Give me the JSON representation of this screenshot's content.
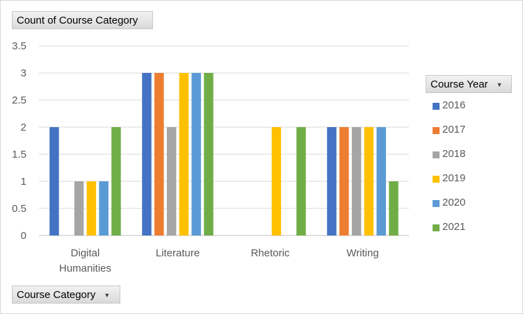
{
  "fields": {
    "value_field": "Count of Course Category",
    "category_field": "Course Category",
    "series_field": "Course Year"
  },
  "icons": {
    "dropdown": "dropdown-arrow-icon"
  },
  "chart_data": {
    "type": "bar",
    "title": "",
    "xlabel": "",
    "ylabel": "",
    "ylim": [
      0,
      3.5
    ],
    "yticks": [
      "0",
      "0.5",
      "1",
      "1.5",
      "2",
      "2.5",
      "3",
      "3.5"
    ],
    "grid": true,
    "legend_position": "right",
    "categories": [
      [
        "Digital",
        "Humanities"
      ],
      [
        "Literature"
      ],
      [
        "Rhetoric"
      ],
      [
        "Writing"
      ]
    ],
    "series": [
      {
        "name": "2016",
        "color": "#4472c4",
        "values": [
          2,
          3,
          0,
          2
        ]
      },
      {
        "name": "2017",
        "color": "#ed7d31",
        "values": [
          0,
          3,
          0,
          2
        ]
      },
      {
        "name": "2018",
        "color": "#a5a5a5",
        "values": [
          1,
          2,
          0,
          2
        ]
      },
      {
        "name": "2019",
        "color": "#ffc000",
        "values": [
          1,
          3,
          2,
          2
        ]
      },
      {
        "name": "2020",
        "color": "#5b9bd5",
        "values": [
          1,
          3,
          0,
          2
        ]
      },
      {
        "name": "2021",
        "color": "#70ad47",
        "values": [
          2,
          3,
          2,
          1
        ]
      }
    ]
  }
}
